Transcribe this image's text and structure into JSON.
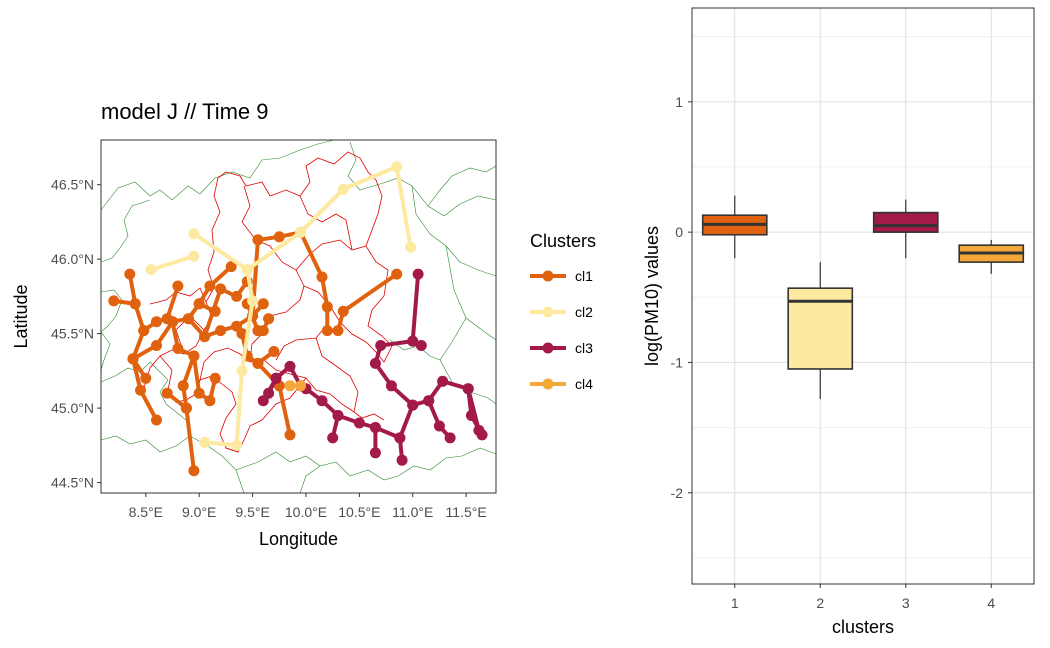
{
  "chart_data": [
    {
      "type": "map-network",
      "title": "model J // Time 9",
      "xlabel": "Longitude",
      "ylabel": "Latitude",
      "xlim": [
        8.08,
        11.78
      ],
      "ylim": [
        44.43,
        46.8
      ],
      "x_ticks": [
        8.5,
        9.0,
        9.5,
        10.0,
        10.5,
        11.0,
        11.5
      ],
      "x_tick_labels": [
        "8.5°E",
        "9.0°E",
        "9.5°E",
        "10.0°E",
        "10.5°E",
        "11.0°E",
        "11.5°E"
      ],
      "y_ticks": [
        44.5,
        45.0,
        45.5,
        46.0,
        46.5
      ],
      "y_tick_labels": [
        "44.5°N",
        "45.0°N",
        "45.5°N",
        "46.0°N",
        "46.5°N"
      ],
      "legend": {
        "title": "Clusters",
        "position": "right",
        "items": [
          {
            "label": "cl1",
            "color": "#e0620f"
          },
          {
            "label": "cl2",
            "color": "#fde9a0"
          },
          {
            "label": "cl3",
            "color": "#a3194a"
          },
          {
            "label": "cl4",
            "color": "#f5a83a"
          }
        ]
      },
      "series": [
        {
          "name": "cl1",
          "color": "#e0620f",
          "segments": [
            [
              [
                8.35,
                45.9
              ],
              [
                8.4,
                45.7
              ],
              [
                8.2,
                45.72
              ]
            ],
            [
              [
                8.4,
                45.7
              ],
              [
                8.48,
                45.52
              ],
              [
                8.6,
                45.58
              ],
              [
                8.7,
                45.6
              ],
              [
                8.8,
                45.82
              ]
            ],
            [
              [
                8.48,
                45.52
              ],
              [
                8.38,
                45.33
              ],
              [
                8.6,
                45.42
              ],
              [
                8.75,
                45.58
              ]
            ],
            [
              [
                8.38,
                45.33
              ],
              [
                8.45,
                45.12
              ],
              [
                8.6,
                44.92
              ]
            ],
            [
              [
                8.38,
                45.33
              ],
              [
                8.5,
                45.2
              ]
            ],
            [
              [
                8.75,
                45.58
              ],
              [
                8.9,
                45.6
              ],
              [
                9.0,
                45.7
              ],
              [
                9.15,
                45.65
              ]
            ],
            [
              [
                8.75,
                45.58
              ],
              [
                8.8,
                45.4
              ],
              [
                8.95,
                45.35
              ],
              [
                8.85,
                45.15
              ],
              [
                8.88,
                45.0
              ]
            ],
            [
              [
                8.88,
                45.0
              ],
              [
                8.95,
                44.58
              ]
            ],
            [
              [
                8.88,
                45.0
              ],
              [
                8.7,
                45.1
              ]
            ],
            [
              [
                8.95,
                45.35
              ],
              [
                9.0,
                45.1
              ],
              [
                9.1,
                45.05
              ],
              [
                9.15,
                45.2
              ]
            ],
            [
              [
                8.9,
                45.6
              ],
              [
                9.05,
                45.48
              ],
              [
                9.2,
                45.52
              ],
              [
                9.35,
                45.55
              ],
              [
                9.5,
                45.62
              ],
              [
                9.6,
                45.7
              ]
            ],
            [
              [
                9.05,
                45.48
              ],
              [
                9.2,
                45.8
              ],
              [
                9.35,
                45.75
              ],
              [
                9.45,
                45.85
              ]
            ],
            [
              [
                9.0,
                45.7
              ],
              [
                9.1,
                45.82
              ],
              [
                9.3,
                45.95
              ]
            ],
            [
              [
                9.5,
                45.62
              ],
              [
                9.55,
                46.13
              ],
              [
                9.75,
                46.15
              ],
              [
                9.95,
                46.18
              ],
              [
                10.15,
                45.88
              ],
              [
                10.2,
                45.68
              ],
              [
                10.2,
                45.52
              ],
              [
                10.3,
                45.52
              ],
              [
                10.35,
                45.65
              ],
              [
                10.85,
                45.9
              ]
            ],
            [
              [
                9.45,
                45.7
              ],
              [
                9.55,
                45.52
              ],
              [
                9.6,
                45.52
              ],
              [
                9.65,
                45.6
              ]
            ],
            [
              [
                9.4,
                45.5
              ],
              [
                9.45,
                45.35
              ],
              [
                9.55,
                45.3
              ],
              [
                9.7,
                45.38
              ]
            ],
            [
              [
                9.55,
                45.3
              ],
              [
                9.75,
                45.15
              ],
              [
                9.85,
                44.82
              ]
            ]
          ]
        },
        {
          "name": "cl2",
          "color": "#fde9a0",
          "segments": [
            [
              [
                8.55,
                45.93
              ],
              [
                8.95,
                46.02
              ]
            ],
            [
              [
                8.95,
                46.17
              ],
              [
                9.45,
                45.93
              ],
              [
                9.5,
                45.72
              ],
              [
                9.4,
                45.25
              ],
              [
                9.35,
                44.75
              ],
              [
                9.05,
                44.77
              ]
            ],
            [
              [
                9.45,
                45.93
              ],
              [
                9.95,
                46.18
              ],
              [
                10.35,
                46.47
              ],
              [
                10.85,
                46.62
              ],
              [
                10.98,
                46.08
              ]
            ]
          ]
        },
        {
          "name": "cl3",
          "color": "#a3194a",
          "segments": [
            [
              [
                9.6,
                45.05
              ],
              [
                9.72,
                45.2
              ],
              [
                9.85,
                45.28
              ],
              [
                9.95,
                45.15
              ]
            ],
            [
              [
                9.72,
                45.2
              ],
              [
                9.65,
                45.1
              ]
            ],
            [
              [
                10.0,
                45.13
              ],
              [
                10.15,
                45.05
              ],
              [
                10.3,
                44.95
              ],
              [
                10.5,
                44.9
              ],
              [
                10.65,
                44.87
              ],
              [
                10.88,
                44.8
              ],
              [
                11.0,
                45.02
              ],
              [
                11.15,
                45.05
              ],
              [
                11.28,
                45.18
              ],
              [
                11.52,
                45.13
              ],
              [
                11.62,
                44.85
              ]
            ],
            [
              [
                10.3,
                44.95
              ],
              [
                10.25,
                44.8
              ]
            ],
            [
              [
                10.65,
                44.87
              ],
              [
                10.65,
                44.7
              ]
            ],
            [
              [
                10.88,
                44.8
              ],
              [
                10.9,
                44.65
              ]
            ],
            [
              [
                11.0,
                45.02
              ],
              [
                10.8,
                45.15
              ],
              [
                10.65,
                45.3
              ],
              [
                10.7,
                45.42
              ],
              [
                11.0,
                45.45
              ],
              [
                11.05,
                45.9
              ]
            ],
            [
              [
                11.15,
                45.05
              ],
              [
                11.25,
                44.88
              ],
              [
                11.35,
                44.8
              ]
            ],
            [
              [
                11.52,
                45.13
              ],
              [
                11.55,
                44.95
              ],
              [
                11.65,
                44.82
              ]
            ],
            [
              [
                11.0,
                45.45
              ],
              [
                11.08,
                45.42
              ]
            ]
          ]
        },
        {
          "name": "cl4",
          "color": "#f5a83a",
          "segments": [
            [
              [
                9.85,
                45.15
              ],
              [
                9.95,
                45.15
              ]
            ]
          ]
        }
      ]
    },
    {
      "type": "boxplot",
      "xlabel": "clusters",
      "ylabel": "log(PM10) values",
      "categories": [
        "1",
        "2",
        "3",
        "4"
      ],
      "ylim": [
        -2.7,
        1.72
      ],
      "y_ticks": [
        -2,
        -1,
        0,
        1
      ],
      "y_tick_labels": [
        "-2",
        "-1",
        "0",
        "1"
      ],
      "boxes": [
        {
          "category": "1",
          "color": "#e0620f",
          "min": -0.2,
          "q1": -0.02,
          "median": 0.06,
          "q3": 0.13,
          "max": 0.28
        },
        {
          "category": "2",
          "color": "#fde9a0",
          "min": -1.28,
          "q1": -1.05,
          "median": -0.53,
          "q3": -0.43,
          "max": -0.23
        },
        {
          "category": "3",
          "color": "#a3194a",
          "min": -0.2,
          "q1": 0.0,
          "median": 0.05,
          "q3": 0.15,
          "max": 0.25
        },
        {
          "category": "4",
          "color": "#f5a83a",
          "min": -0.32,
          "q1": -0.23,
          "median": -0.16,
          "q3": -0.1,
          "max": -0.06
        }
      ]
    }
  ]
}
